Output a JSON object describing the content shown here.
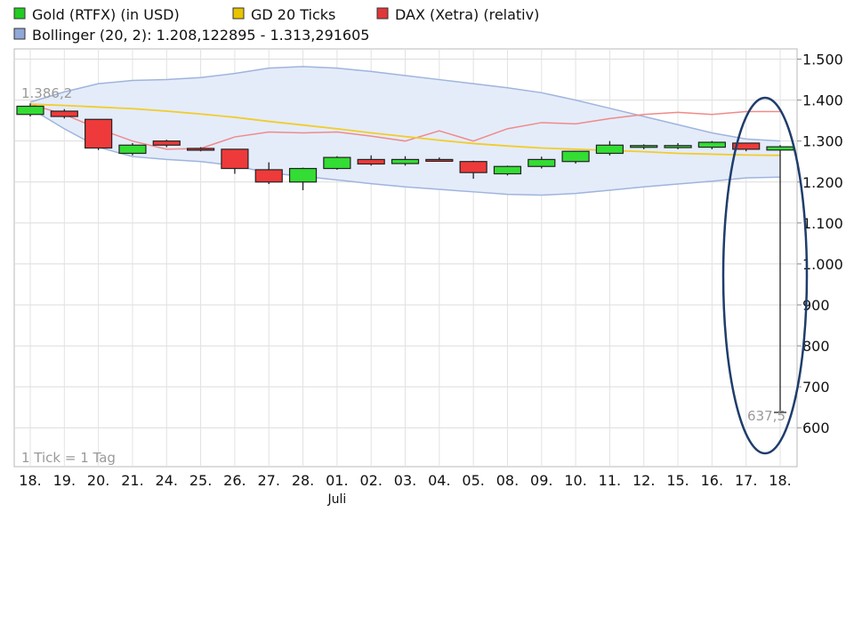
{
  "chart_data": {
    "type": "candlestick",
    "legend": [
      {
        "label": "Gold (RTFX) (in USD)",
        "color": "#22cc22"
      },
      {
        "label": "GD 20 Ticks",
        "color": "#e8c400"
      },
      {
        "label": "DAX (Xetra) (relativ)",
        "color": "#e03838"
      },
      {
        "label": "Bollinger (20, 2): 1.208,122895 - 1.313,291605",
        "color": "#8fa8d8"
      }
    ],
    "x_tick_labels": [
      "18.",
      "19.",
      "20.",
      "21.",
      "24.",
      "25.",
      "26.",
      "27.",
      "28.",
      "01.",
      "02.",
      "03.",
      "04.",
      "05.",
      "08.",
      "09.",
      "10.",
      "11.",
      "12.",
      "15.",
      "16.",
      "17.",
      "18."
    ],
    "x_sublabel": {
      "text": "Juli",
      "index": 9
    },
    "y_ticks": [
      600,
      700,
      800,
      900,
      1000,
      1100,
      1200,
      1300,
      1400,
      1500
    ],
    "y_tick_labels": [
      "600",
      "700",
      "800",
      "900",
      "1.000",
      "1.100",
      "1.200",
      "1.300",
      "1.400",
      "1.500"
    ],
    "ylim": [
      505,
      1525
    ],
    "grid": true,
    "candles": [
      {
        "open": 1365,
        "close": 1385,
        "high": 1392,
        "low": 1360
      },
      {
        "open": 1373,
        "close": 1360,
        "high": 1378,
        "low": 1355
      },
      {
        "open": 1353,
        "close": 1283,
        "high": 1353,
        "low": 1278
      },
      {
        "open": 1270,
        "close": 1290,
        "high": 1295,
        "low": 1265
      },
      {
        "open": 1300,
        "close": 1290,
        "high": 1303,
        "low": 1285
      },
      {
        "open": 1282,
        "close": 1278,
        "high": 1285,
        "low": 1275
      },
      {
        "open": 1280,
        "close": 1233,
        "high": 1280,
        "low": 1220
      },
      {
        "open": 1230,
        "close": 1200,
        "high": 1248,
        "low": 1195
      },
      {
        "open": 1200,
        "close": 1233,
        "high": 1235,
        "low": 1180
      },
      {
        "open": 1233,
        "close": 1260,
        "high": 1263,
        "low": 1230
      },
      {
        "open": 1255,
        "close": 1244,
        "high": 1265,
        "low": 1240
      },
      {
        "open": 1245,
        "close": 1255,
        "high": 1263,
        "low": 1240
      },
      {
        "open": 1255,
        "close": 1252,
        "high": 1260,
        "low": 1250
      },
      {
        "open": 1250,
        "close": 1223,
        "high": 1252,
        "low": 1208
      },
      {
        "open": 1220,
        "close": 1238,
        "high": 1240,
        "low": 1216
      },
      {
        "open": 1238,
        "close": 1255,
        "high": 1262,
        "low": 1233
      },
      {
        "open": 1250,
        "close": 1275,
        "high": 1276,
        "low": 1245
      },
      {
        "open": 1270,
        "close": 1290,
        "high": 1300,
        "low": 1265
      },
      {
        "open": 1287,
        "close": 1289,
        "high": 1292,
        "low": 1280
      },
      {
        "open": 1284,
        "close": 1289,
        "high": 1295,
        "low": 1280
      },
      {
        "open": 1285,
        "close": 1297,
        "high": 1300,
        "low": 1280
      },
      {
        "open": 1295,
        "close": 1280,
        "high": 1295,
        "low": 1275
      },
      {
        "open": 1278,
        "close": 1286,
        "high": 1290,
        "low": 637.5
      }
    ],
    "gd20": [
      1390,
      1387,
      1383,
      1379,
      1373,
      1366,
      1358,
      1348,
      1339,
      1330,
      1320,
      1311,
      1302,
      1294,
      1288,
      1283,
      1280,
      1277,
      1274,
      1270,
      1268,
      1266,
      1265
    ],
    "dax_relative": [
      1390,
      1365,
      1330,
      1300,
      1280,
      1282,
      1310,
      1322,
      1320,
      1322,
      1312,
      1300,
      1325,
      1300,
      1330,
      1345,
      1342,
      1355,
      1365,
      1370,
      1365,
      1372,
      1372
    ],
    "bollinger_upper": [
      1395,
      1420,
      1440,
      1448,
      1450,
      1455,
      1465,
      1478,
      1482,
      1478,
      1470,
      1460,
      1450,
      1440,
      1430,
      1418,
      1400,
      1380,
      1360,
      1340,
      1320,
      1305,
      1300
    ],
    "bollinger_lower": [
      1380,
      1330,
      1285,
      1262,
      1255,
      1250,
      1240,
      1222,
      1214,
      1205,
      1196,
      1188,
      1182,
      1176,
      1170,
      1168,
      1172,
      1180,
      1188,
      1195,
      1202,
      1210,
      1212
    ],
    "annotations": {
      "max_label": "1.386,2",
      "min_label": "637,5",
      "tick_note": "1 Tick = 1 Tag"
    }
  }
}
